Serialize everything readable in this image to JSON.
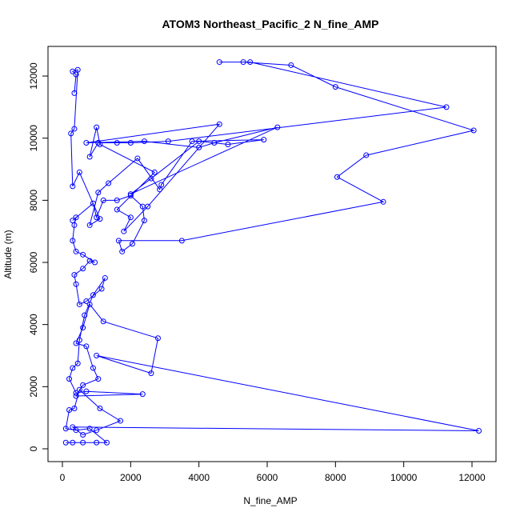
{
  "chart_data": {
    "type": "line",
    "title": "ATOM3 Northeast_Pacific_2 N_fine_AMP",
    "x_label": "N_fine_AMP",
    "y_label": "Altitude (m)",
    "color": "#0000ff",
    "marker": "open-circle",
    "xlim": [
      -422,
      12703
    ],
    "ylim": [
      -412,
      12954
    ],
    "xticks": [
      0,
      2000,
      4000,
      6000,
      8000,
      10000,
      12000
    ],
    "yticks": [
      0,
      2000,
      4000,
      6000,
      8000,
      10000,
      12000
    ],
    "x": [
      100,
      300,
      600,
      1000,
      1300,
      800,
      400,
      100,
      200,
      350,
      500,
      1100,
      1700,
      1000,
      600,
      300,
      12200,
      1000,
      2600,
      2800,
      1200,
      800,
      600,
      400,
      700,
      900,
      1050,
      600,
      400,
      2350,
      700,
      400,
      200,
      300,
      450,
      500,
      650,
      900,
      1250,
      1150,
      700,
      500,
      400,
      350,
      600,
      800,
      950,
      600,
      400,
      300,
      350,
      400,
      300,
      900,
      1000,
      1200,
      1600,
      2000,
      2350,
      2400,
      2050,
      1750,
      1650,
      3500,
      9400,
      8050,
      8900,
      12050,
      8000,
      6700,
      5300,
      4600,
      5500,
      11250,
      3100,
      2000,
      1600,
      1050,
      800,
      1000,
      1100,
      2700,
      1600,
      2000,
      1800,
      2500,
      4600,
      700,
      2400,
      4000,
      4450,
      6300,
      2000,
      2600,
      4000,
      4850,
      5900,
      3800,
      2900,
      2850,
      2200,
      1350,
      1050,
      800,
      1100,
      500,
      300,
      250,
      350,
      450,
      300,
      400,
      350
    ],
    "values": [
      200,
      200,
      200,
      200,
      200,
      650,
      600,
      650,
      1250,
      1300,
      1900,
      1300,
      900,
      600,
      450,
      700,
      580,
      3000,
      2430,
      3560,
      4100,
      4650,
      3900,
      3400,
      3300,
      2600,
      2250,
      2050,
      1700,
      1760,
      1850,
      1800,
      2250,
      2600,
      2750,
      3500,
      4300,
      4950,
      5500,
      5150,
      4750,
      4650,
      5300,
      5600,
      5800,
      6050,
      6000,
      6250,
      6350,
      6700,
      7200,
      7450,
      7350,
      7900,
      7450,
      8000,
      8000,
      8150,
      7800,
      7350,
      6600,
      6350,
      6700,
      6700,
      7950,
      8750,
      9450,
      10250,
      11650,
      12350,
      12450,
      12450,
      12450,
      11000,
      9900,
      9850,
      9850,
      9850,
      9400,
      10350,
      9800,
      8900,
      7700,
      7450,
      7000,
      7800,
      10450,
      9850,
      9900,
      9700,
      9850,
      10350,
      8200,
      8700,
      9900,
      9800,
      9950,
      9900,
      8500,
      8350,
      9350,
      8550,
      8250,
      7200,
      7400,
      8900,
      8450,
      10150,
      10300,
      12200,
      12150,
      12050,
      11450
    ]
  }
}
